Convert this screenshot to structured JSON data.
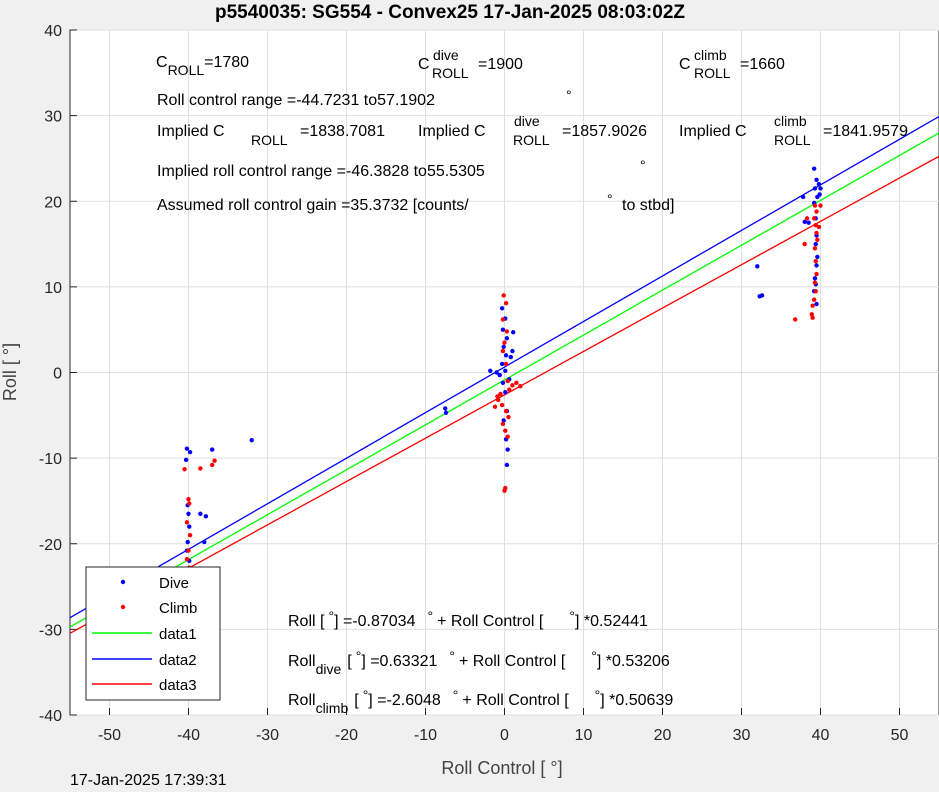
{
  "title": "p5540035: SG554 - Convex25 17-Jan-2025 08:03:02Z",
  "timestamp": "17-Jan-2025 17:39:31",
  "colors": {
    "dive": "#0000ff",
    "climb": "#ff0000",
    "data1": "#00ff00",
    "data2": "#0000ff",
    "data3": "#ff0000",
    "grid": "#dfdfdf"
  },
  "annotations": {
    "c_roll": "C",
    "c_roll_sub": "ROLL",
    "c_roll_val": "=1780",
    "c_dive": "C",
    "c_dive_sup": "dive",
    "c_dive_sub": "ROLL",
    "c_dive_val": "=1900",
    "c_climb": "C",
    "c_climb_sup": "climb",
    "c_climb_sub": "ROLL",
    "c_climb_val": "=1660",
    "range": "Roll control range =-44.7231 to57.1902",
    "implied1_a": "Implied C",
    "implied1_sub": "ROLL",
    "implied1_val": "=1838.7081",
    "implied2_a": "Implied C",
    "implied2_sup": "dive",
    "implied2_sub": "ROLL",
    "implied2_val": "=1857.9026",
    "implied3_a": "Implied C",
    "implied3_sup": "climb",
    "implied3_sub": "ROLL",
    "implied3_val": "=1841.9579",
    "implied_range": "Implied roll control range =-46.3828 to55.5305",
    "gain": "Assumed roll control gain =35.3732 [counts/",
    "gain_end": "to stbd]",
    "deg": "°",
    "eq1_a": "Roll [",
    "eq1_b": "] =-0.87034",
    "eq1_c": "+ Roll Control [",
    "eq1_d": "] *0.52441",
    "eq2_a": "Roll",
    "eq2_sub": "dive",
    "eq2_b": "[",
    "eq2_c": "] =0.63321",
    "eq2_d": "+ Roll Control [",
    "eq2_e": "] *0.53206",
    "eq3_a": "Roll",
    "eq3_sub": "climb",
    "eq3_b": "[",
    "eq3_c": "] =-2.6048",
    "eq3_d": "+ Roll Control [",
    "eq3_e": "] *0.50639"
  },
  "chart_data": {
    "type": "scatter",
    "title": "p5540035: SG554 - Convex25 17-Jan-2025 08:03:02Z",
    "xlabel": "Roll Control [   °]",
    "ylabel": "Roll [  °]",
    "xlim": [
      -55,
      55
    ],
    "ylim": [
      -40,
      40
    ],
    "xticks": [
      -50,
      -40,
      -30,
      -20,
      -10,
      0,
      10,
      20,
      30,
      40,
      50
    ],
    "yticks": [
      -40,
      -30,
      -20,
      -10,
      0,
      10,
      20,
      30,
      40
    ],
    "grid": true,
    "legend": {
      "placement": "bottom-left",
      "entries": [
        "Dive",
        "Climb",
        "data1",
        "data2",
        "data3"
      ]
    },
    "series": [
      {
        "name": "Dive",
        "kind": "scatter",
        "color": "#0000ff",
        "points": [
          [
            -48.2,
            -24.6
          ],
          [
            -40.2,
            -8.9
          ],
          [
            -40.3,
            -10.2
          ],
          [
            -39.8,
            -9.3
          ],
          [
            -40.1,
            -15.5
          ],
          [
            -40.0,
            -16.5
          ],
          [
            -39.9,
            -18.0
          ],
          [
            -40.1,
            -19.8
          ],
          [
            -40.2,
            -20.8
          ],
          [
            -39.9,
            -22.0
          ],
          [
            -40.0,
            -23.5
          ],
          [
            -40.1,
            -24.8
          ],
          [
            -38.5,
            -16.5
          ],
          [
            -37.8,
            -16.8
          ],
          [
            -38.0,
            -19.8
          ],
          [
            -37.0,
            -9.0
          ],
          [
            -32.0,
            -7.9
          ],
          [
            -7.5,
            -4.2
          ],
          [
            -7.4,
            -4.7
          ],
          [
            -0.3,
            7.5
          ],
          [
            0.1,
            6.3
          ],
          [
            -0.2,
            5.0
          ],
          [
            0.3,
            4.0
          ],
          [
            -0.1,
            3.0
          ],
          [
            0.2,
            2.0
          ],
          [
            -0.3,
            1.0
          ],
          [
            0.1,
            0.2
          ],
          [
            -0.6,
            -0.3
          ],
          [
            0.8,
            1.8
          ],
          [
            1.0,
            2.5
          ],
          [
            1.1,
            4.7
          ],
          [
            -0.2,
            -1.2
          ],
          [
            0.1,
            -2.3
          ],
          [
            0.3,
            -4.5
          ],
          [
            -0.1,
            -5.6
          ],
          [
            0.2,
            -7.8
          ],
          [
            0.4,
            -9.0
          ],
          [
            0.3,
            -10.8
          ],
          [
            -1.0,
            0.0
          ],
          [
            -1.8,
            0.2
          ],
          [
            0.6,
            -0.8
          ],
          [
            32.0,
            12.4
          ],
          [
            32.3,
            8.9
          ],
          [
            32.6,
            9.0
          ],
          [
            37.8,
            20.5
          ],
          [
            38.0,
            17.6
          ],
          [
            38.5,
            17.5
          ],
          [
            39.2,
            23.8
          ],
          [
            39.5,
            22.5
          ],
          [
            39.3,
            21.5
          ],
          [
            39.6,
            20.5
          ],
          [
            39.2,
            19.8
          ],
          [
            39.4,
            18.0
          ],
          [
            39.5,
            16.0
          ],
          [
            39.4,
            15.0
          ],
          [
            39.6,
            13.5
          ],
          [
            39.5,
            12.5
          ],
          [
            39.3,
            11.0
          ],
          [
            39.4,
            10.3
          ],
          [
            39.2,
            9.5
          ],
          [
            39.5,
            8.0
          ],
          [
            39.8,
            22.0
          ],
          [
            40.0,
            21.5
          ],
          [
            39.9,
            20.8
          ]
        ]
      },
      {
        "name": "Climb",
        "kind": "scatter",
        "color": "#ff0000",
        "points": [
          [
            -48.3,
            -27.2
          ],
          [
            -40.5,
            -11.3
          ],
          [
            -38.5,
            -11.2
          ],
          [
            -37.0,
            -10.8
          ],
          [
            -36.7,
            -10.3
          ],
          [
            -40.0,
            -14.8
          ],
          [
            -39.9,
            -15.3
          ],
          [
            -40.2,
            -17.5
          ],
          [
            -39.8,
            -19.0
          ],
          [
            -40.0,
            -20.8
          ],
          [
            -40.2,
            -21.8
          ],
          [
            -39.9,
            -22.8
          ],
          [
            -40.1,
            -23.5
          ],
          [
            -39.8,
            -24.0
          ],
          [
            -40.0,
            -24.8
          ],
          [
            -40.3,
            -25.5
          ],
          [
            -39.9,
            -25.8
          ],
          [
            -0.1,
            9.0
          ],
          [
            0.2,
            8.1
          ],
          [
            -0.2,
            6.2
          ],
          [
            0.3,
            4.8
          ],
          [
            0.0,
            3.5
          ],
          [
            -0.2,
            2.5
          ],
          [
            0.2,
            1.0
          ],
          [
            0.4,
            -1.0
          ],
          [
            1.0,
            -1.5
          ],
          [
            1.5,
            -1.2
          ],
          [
            2.0,
            -1.6
          ],
          [
            0.6,
            -2.0
          ],
          [
            -0.5,
            -2.5
          ],
          [
            -0.8,
            -3.2
          ],
          [
            -0.3,
            -3.8
          ],
          [
            0.2,
            -4.5
          ],
          [
            0.5,
            -5.2
          ],
          [
            -0.2,
            -6.0
          ],
          [
            0.1,
            -6.8
          ],
          [
            0.4,
            -7.5
          ],
          [
            0.1,
            -13.5
          ],
          [
            0.0,
            -13.8
          ],
          [
            -0.9,
            -2.8
          ],
          [
            -1.2,
            -4.0
          ],
          [
            39.3,
            19.5
          ],
          [
            39.5,
            18.8
          ],
          [
            39.2,
            18.0
          ],
          [
            39.4,
            17.2
          ],
          [
            39.5,
            16.3
          ],
          [
            39.6,
            15.5
          ],
          [
            39.3,
            14.5
          ],
          [
            39.4,
            13.0
          ],
          [
            39.5,
            11.5
          ],
          [
            39.3,
            10.5
          ],
          [
            39.4,
            9.5
          ],
          [
            39.2,
            8.5
          ],
          [
            39.0,
            7.8
          ],
          [
            38.9,
            6.8
          ],
          [
            39.0,
            6.4
          ],
          [
            36.8,
            6.2
          ],
          [
            38.0,
            15.0
          ],
          [
            38.3,
            18.0
          ],
          [
            39.8,
            17.0
          ],
          [
            40.0,
            19.5
          ]
        ]
      },
      {
        "name": "data1",
        "kind": "line",
        "color": "#00ff00",
        "intercept": -0.87034,
        "slope": 0.52441
      },
      {
        "name": "data2",
        "kind": "line",
        "color": "#0000ff",
        "intercept": 0.63321,
        "slope": 0.53206
      },
      {
        "name": "data3",
        "kind": "line",
        "color": "#ff0000",
        "intercept": -2.6048,
        "slope": 0.50639
      }
    ]
  }
}
